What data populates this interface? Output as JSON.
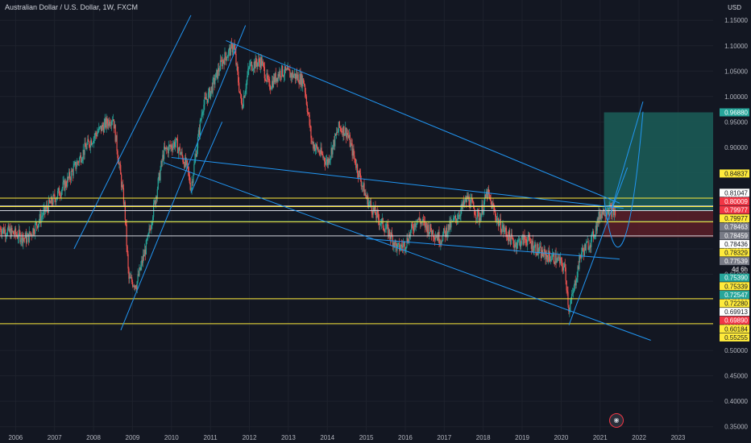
{
  "header": {
    "title": "Australian Dollar / U.S. Dollar, 1W, FXCM",
    "currency": "USD"
  },
  "colors": {
    "background": "#131722",
    "grid": "#1e222d",
    "up": "#26a69a",
    "down": "#ef5350",
    "trendline": "#2196f3",
    "level_yellow": "#ffeb3b",
    "level_white": "#d1d4dc",
    "target_zone": "#1b5e58",
    "stop_zone": "#5c1f28"
  },
  "chart_data": {
    "type": "candlestick",
    "x_ticks": [
      "2006",
      "2007",
      "2008",
      "2009",
      "2010",
      "2011",
      "2012",
      "2013",
      "2014",
      "2015",
      "2016",
      "2017",
      "2018",
      "2019",
      "2020",
      "2021",
      "2022",
      "2023"
    ],
    "y_ticks": [
      "1.15000",
      "1.10000",
      "1.05000",
      "1.00000",
      "0.95000",
      "0.90000",
      "0.85000",
      "0.80000",
      "0.75000",
      "0.70000",
      "0.65000",
      "0.60000",
      "0.55000",
      "0.50000",
      "0.45000",
      "0.40000",
      "0.35000"
    ],
    "ylim": [
      0.34,
      1.19
    ],
    "xlim": [
      2005.6,
      2023.9
    ],
    "price_path": [
      [
        2005.6,
        0.74
      ],
      [
        2006.3,
        0.72
      ],
      [
        2006.8,
        0.78
      ],
      [
        2007.3,
        0.83
      ],
      [
        2007.8,
        0.9
      ],
      [
        2008.1,
        0.93
      ],
      [
        2008.5,
        0.96
      ],
      [
        2008.8,
        0.78
      ],
      [
        2008.9,
        0.64
      ],
      [
        2009.1,
        0.63
      ],
      [
        2009.4,
        0.72
      ],
      [
        2009.8,
        0.89
      ],
      [
        2010.1,
        0.91
      ],
      [
        2010.4,
        0.86
      ],
      [
        2010.5,
        0.82
      ],
      [
        2010.8,
        0.98
      ],
      [
        2011.0,
        1.01
      ],
      [
        2011.3,
        1.07
      ],
      [
        2011.6,
        1.1
      ],
      [
        2011.8,
        0.98
      ],
      [
        2012.0,
        1.06
      ],
      [
        2012.3,
        1.07
      ],
      [
        2012.5,
        1.02
      ],
      [
        2012.8,
        1.05
      ],
      [
        2013.2,
        1.04
      ],
      [
        2013.4,
        1.03
      ],
      [
        2013.6,
        0.91
      ],
      [
        2013.8,
        0.89
      ],
      [
        2014.0,
        0.87
      ],
      [
        2014.3,
        0.94
      ],
      [
        2014.5,
        0.93
      ],
      [
        2014.8,
        0.85
      ],
      [
        2015.0,
        0.8
      ],
      [
        2015.3,
        0.76
      ],
      [
        2015.6,
        0.73
      ],
      [
        2015.8,
        0.7
      ],
      [
        2016.0,
        0.71
      ],
      [
        2016.3,
        0.76
      ],
      [
        2016.6,
        0.74
      ],
      [
        2016.9,
        0.72
      ],
      [
        2017.3,
        0.76
      ],
      [
        2017.6,
        0.8
      ],
      [
        2017.9,
        0.76
      ],
      [
        2018.1,
        0.81
      ],
      [
        2018.4,
        0.75
      ],
      [
        2018.8,
        0.71
      ],
      [
        2019.1,
        0.72
      ],
      [
        2019.5,
        0.69
      ],
      [
        2019.9,
        0.68
      ],
      [
        2020.1,
        0.66
      ],
      [
        2020.2,
        0.58
      ],
      [
        2020.3,
        0.61
      ],
      [
        2020.5,
        0.69
      ],
      [
        2020.8,
        0.72
      ],
      [
        2021.0,
        0.77
      ],
      [
        2021.2,
        0.78
      ],
      [
        2021.4,
        0.77
      ]
    ],
    "price_levels": [
      {
        "value": 0.9688,
        "label": "0.96880",
        "tag_color": "#26a69a",
        "line": null
      },
      {
        "value": 0.8484,
        "label": "0.84837",
        "tag_color": "#ffeb3b",
        "line": null
      },
      {
        "value": 0.8105,
        "label": "0.81047",
        "tag_color": "#ffffff",
        "line": null
      },
      {
        "value": 0.8001,
        "label": "0.80009",
        "tag_color": "#f23645",
        "line": null
      },
      {
        "value": 0.7998,
        "label": "0.79977",
        "tag_color": "#f23645",
        "line": null
      },
      {
        "value": 0.7998,
        "label": "0.79977",
        "tag_color": "#ffeb3b",
        "line": "#ffeb3b"
      },
      {
        "value": 0.7846,
        "label": "0.78463",
        "tag_color": "#787b86",
        "line": null
      },
      {
        "value": 0.7846,
        "label": "0.78459",
        "tag_color": "#787b86",
        "line": null
      },
      {
        "value": 0.7844,
        "label": "0.78436",
        "tag_color": "#ffffff",
        "line": "#d1d4dc"
      },
      {
        "value": 0.7833,
        "label": "0.78329",
        "tag_color": "#ffeb3b",
        "line": "#ffeb3b"
      },
      {
        "value": 0.7754,
        "label": "0.77539",
        "tag_color": "#787b86",
        "line": "#d1d4dc"
      },
      {
        "value": 0.7539,
        "label": "0.75390",
        "tag_color": "#26a69a",
        "line": "#26a69a"
      },
      {
        "value": 0.7533,
        "label": "0.75339",
        "tag_color": "#ffeb3b",
        "line": "#ffeb3b"
      },
      {
        "value": 0.7255,
        "label": "0.72547",
        "tag_color": "#26a69a",
        "line": "#d1d4dc"
      },
      {
        "value": 0.7228,
        "label": "0.72280",
        "tag_color": "#ffeb3b",
        "line": null
      },
      {
        "value": 0.6991,
        "label": "0.69913",
        "tag_color": "#ffffff",
        "line": null
      },
      {
        "value": 0.6989,
        "label": "0.69890",
        "tag_color": "#f23645",
        "line": null
      },
      {
        "value": 0.6018,
        "label": "0.60184",
        "tag_color": "#ffeb3b",
        "line": "#ffeb3b"
      },
      {
        "value": 0.5526,
        "label": "0.55255",
        "tag_color": "#ffeb3b",
        "line": "#ffeb3b"
      }
    ],
    "countdown": "4d 6h",
    "trendlines": [
      [
        2007.5,
        0.7,
        2010.5,
        1.16
      ],
      [
        2008.7,
        0.54,
        2011.9,
        1.14
      ],
      [
        2010.5,
        0.81,
        2011.3,
        0.95
      ],
      [
        2011.4,
        1.11,
        2021.5,
        0.79
      ],
      [
        2010.0,
        0.88,
        2021.6,
        0.78
      ],
      [
        2015.0,
        0.72,
        2021.5,
        0.68
      ],
      [
        2009.8,
        0.87,
        2022.3,
        0.52
      ],
      [
        2020.2,
        0.55,
        2021.7,
        0.86
      ],
      [
        2021.3,
        0.78,
        2022.1,
        0.99
      ]
    ],
    "position": {
      "entry": 0.7754,
      "target": 0.9688,
      "stop": 0.7228,
      "x_start": 2021.1,
      "x_end": 2023.9
    }
  }
}
